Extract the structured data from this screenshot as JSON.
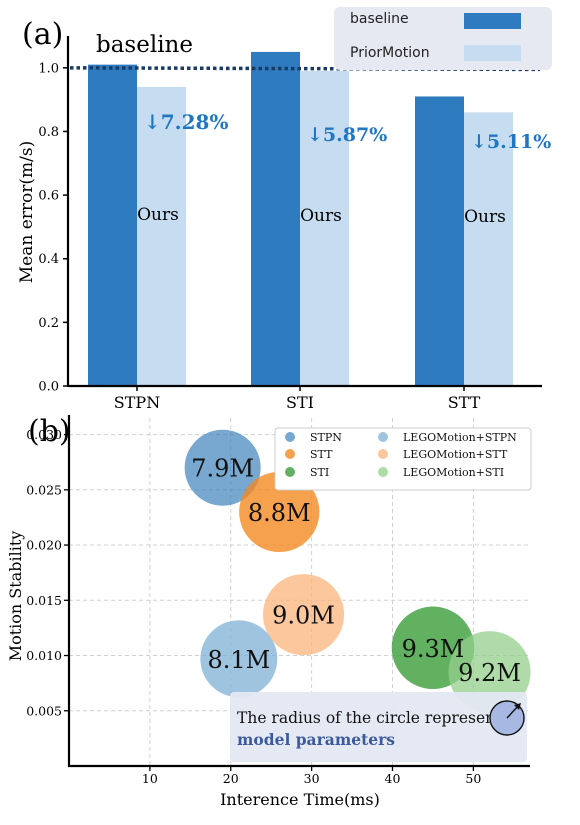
{
  "chart_data": [
    {
      "panel_label": "(a)",
      "type": "bar",
      "categories": [
        "STPN",
        "STI",
        "STT"
      ],
      "series": [
        {
          "name": "baseline",
          "values": [
            1.01,
            1.05,
            0.91
          ],
          "color": "#2f7bbf"
        },
        {
          "name": "PriorMotion",
          "values": [
            0.94,
            0.99,
            0.86
          ],
          "color": "#c6dcf0"
        }
      ],
      "ylabel": "Mean error(m/s)",
      "ylim": [
        0,
        1.1
      ],
      "yticks": [
        "0.0",
        "0.2",
        "0.4",
        "0.6",
        "0.8",
        "1.0"
      ],
      "baseline_line": {
        "label": "baseline",
        "y_start": 1.0,
        "y_end": 0.995,
        "color": "#1a3a66"
      },
      "bar_labels": [
        "Ours",
        "Ours",
        "Ours"
      ],
      "improvements": [
        "↓7.28%",
        "↓5.87%",
        "↓5.11%"
      ],
      "improvement_color": "#1f77c4",
      "legend_position": "top-right"
    },
    {
      "panel_label": "(b)",
      "type": "scatter",
      "xlabel": "Interence Time(ms)",
      "ylabel": "Motion Stability",
      "xlim": [
        0,
        57
      ],
      "ylim": [
        0,
        0.0315
      ],
      "xticks": [
        "10",
        "20",
        "30",
        "40",
        "50"
      ],
      "yticks": [
        "0.005",
        "0.010",
        "0.015",
        "0.020",
        "0.025",
        "0.030"
      ],
      "points": [
        {
          "name": "STPN",
          "x": 19,
          "y": 0.027,
          "params": 7.9,
          "label": "7.9M",
          "color": "#2f78b5",
          "alpha": 0.65
        },
        {
          "name": "STT",
          "x": 26,
          "y": 0.023,
          "params": 8.8,
          "label": "8.8M",
          "color": "#f28a22",
          "alpha": 0.8
        },
        {
          "name": "LEGOMotion+STPN",
          "x": 21,
          "y": 0.0097,
          "params": 8.1,
          "label": "8.1M",
          "color": "#7fb0d6",
          "alpha": 0.75
        },
        {
          "name": "LEGOMotion+STT",
          "x": 29,
          "y": 0.0137,
          "params": 9.0,
          "label": "9.0M",
          "color": "#fbb47c",
          "alpha": 0.75
        },
        {
          "name": "STI",
          "x": 45,
          "y": 0.0107,
          "params": 9.3,
          "label": "9.3M",
          "color": "#3a9d3a",
          "alpha": 0.8
        },
        {
          "name": "LEGOMotion+STI",
          "x": 52,
          "y": 0.0085,
          "params": 9.2,
          "label": "9.2M",
          "color": "#94cf8c",
          "alpha": 0.75
        }
      ],
      "legend_entries": [
        "STPN",
        "STT",
        "STI",
        "LEGOMotion+STPN",
        "LEGOMotion+STT",
        "LEGOMotion+STI"
      ],
      "legend_position": "top-right",
      "grid": true,
      "annotation": {
        "line1": "The radius of the circle represents",
        "line2": "model parameters"
      }
    }
  ]
}
